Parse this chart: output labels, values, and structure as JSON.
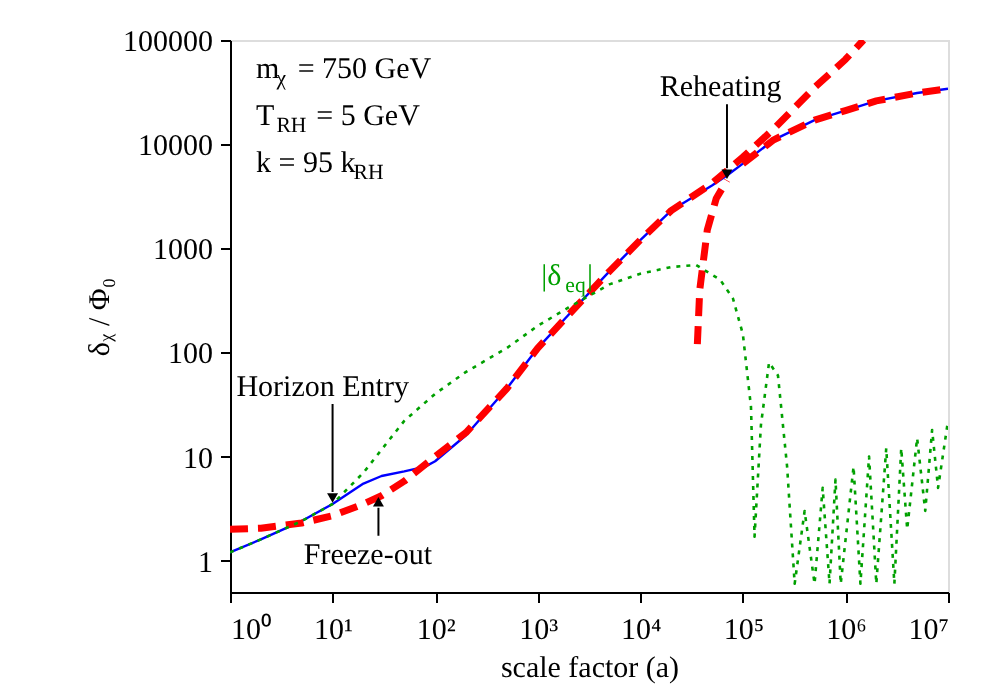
{
  "chart_data": {
    "type": "line",
    "xlabel": "scale factor (a)",
    "ylabel": "δᵪ / Φ₀",
    "log": "xy",
    "xlim": [
      1,
      10000000
    ],
    "ylim": [
      0.5,
      100000
    ],
    "xticks": [
      {
        "value": 1,
        "label": "10⁰"
      },
      {
        "value": 10,
        "label": "10¹"
      },
      {
        "value": 100,
        "label": "10²"
      },
      {
        "value": 1000,
        "label": "10³"
      },
      {
        "value": 10000,
        "label": "10⁴"
      },
      {
        "value": 100000,
        "label": "10⁵"
      },
      {
        "value": 1000000,
        "label": "10⁶"
      },
      {
        "value": 10000000,
        "label": "10⁷"
      }
    ],
    "yticks": [
      1,
      10,
      100,
      1000,
      10000,
      100000
    ],
    "grid": false,
    "legend": false,
    "series": [
      {
        "color": "#0000ff",
        "line_style": "solid",
        "x": [
          1,
          2,
          5,
          10,
          20,
          30,
          50,
          80,
          100,
          200,
          500,
          1000,
          2000,
          5000,
          10000,
          20000,
          50000,
          70000,
          100000,
          200000,
          500000,
          1000000,
          2000000,
          5000000,
          10000000
        ],
        "values": [
          1.2,
          1.6,
          2.4,
          3.5,
          5.5,
          6.5,
          7.2,
          8,
          9,
          16,
          45,
          110,
          230,
          600,
          1200,
          2300,
          4000,
          5000,
          6500,
          11000,
          17000,
          21000,
          26000,
          31000,
          34000
        ]
      },
      {
        "color": "#ff0000",
        "line_style": "dashed",
        "x": [
          1,
          2,
          5,
          10,
          20,
          30,
          50,
          100,
          200,
          500,
          1000,
          2000,
          5000,
          10000,
          20000,
          50000,
          100000,
          200000,
          500000,
          1000000,
          1500000
        ],
        "values": [
          2,
          2.05,
          2.3,
          2.7,
          3.5,
          4.2,
          5.8,
          10,
          17,
          45,
          110,
          230,
          600,
          1200,
          2300,
          4200,
          7500,
          14000,
          35000,
          65000,
          100000
        ]
      },
      {
        "color": "#ff0000",
        "line_style": "dashed",
        "x": [
          100000,
          200000,
          500000,
          1000000,
          2000000,
          5000000,
          10000000
        ],
        "values": [
          6500,
          11000,
          17000,
          21000,
          26000,
          31000,
          34000
        ]
      },
      {
        "color": "#ff0000",
        "line_style": "dashed",
        "x": [
          36000,
          38000,
          45000,
          55000,
          70000
        ],
        "values": [
          120,
          400,
          1500,
          3000,
          4500
        ]
      },
      {
        "color": "#00a000",
        "line_style": "dotted",
        "x": [
          1,
          2,
          5,
          10,
          20,
          50,
          100,
          200,
          500,
          1000,
          2000,
          5000,
          10000,
          20000,
          35000,
          60000,
          80000,
          100000,
          120000,
          130000,
          150000,
          180000,
          220000,
          270000,
          320000,
          400000,
          500000,
          600000,
          700000,
          800000,
          900000,
          1200000,
          1400000,
          1700000,
          2000000,
          2500000,
          3000000,
          3500000,
          4000000,
          5000000,
          6000000,
          7000000,
          8000000,
          10000000
        ],
        "values": [
          1.2,
          1.6,
          2.4,
          3.5,
          7,
          22,
          40,
          65,
          110,
          180,
          270,
          450,
          570,
          660,
          690,
          500,
          330,
          150,
          30,
          1.7,
          20,
          80,
          60,
          8,
          0.6,
          3,
          0.6,
          5,
          0.6,
          6,
          0.6,
          8,
          0.6,
          10,
          0.6,
          12,
          0.6,
          12,
          2,
          15,
          3,
          18,
          5,
          22
        ]
      }
    ],
    "annotations": [
      "m$_{χ}$ = 750 GeV",
      "T$_{RH}$ = 5 GeV",
      "k = 95 k$_{RH}$",
      {
        "text": "Horizon Entry",
        "x": 10,
        "y": 3.5
      },
      {
        "text": "Freeze-out",
        "x": 28,
        "y": 4.2
      },
      {
        "text": "Reheating",
        "x": 70000,
        "y": 4500
      },
      {
        "text": "|δ$_{eq}$|",
        "x": 2000,
        "y": 270
      }
    ]
  }
}
